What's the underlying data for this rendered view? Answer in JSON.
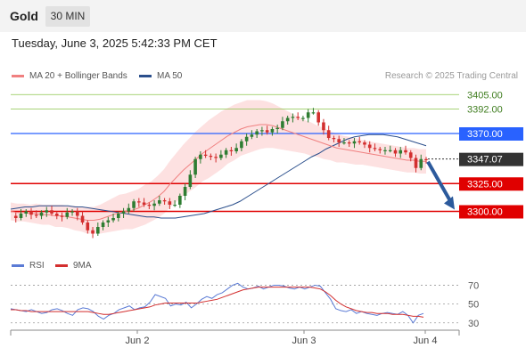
{
  "header": {
    "symbol": "Gold",
    "timeframe": "30 MIN"
  },
  "datetime": "Tuesday, June 3, 2025 5:42:33 PM CET",
  "legend": {
    "ma20": "MA 20 + Bollinger Bands",
    "ma50": "MA 50",
    "rsi": "RSI",
    "ma9": "9MA"
  },
  "credit": "Research © 2025 Trading Central",
  "colors": {
    "ma20": "#f08080",
    "ma50": "#2b4f8c",
    "band": "#fde1e1",
    "up": "#2e7d32",
    "down": "#d32f2f",
    "resistance": "#8bc34a",
    "pivot": "#2962ff",
    "support": "#e00000",
    "arrow": "#2c5a9c",
    "rsi": "#5b7bd5",
    "rsi_ma": "#d32f2f"
  },
  "chart_data": [
    {
      "type": "line",
      "ylim": [
        3262,
        3418
      ],
      "x_ticks": [
        "Jun 2",
        "Jun 3",
        "Jun 4"
      ],
      "levels": [
        {
          "label": "3405.00",
          "value": 3405,
          "kind": "resistance"
        },
        {
          "label": "3392.00",
          "value": 3392,
          "kind": "resistance"
        },
        {
          "label": "3370.00",
          "value": 3370,
          "kind": "pivot"
        },
        {
          "label": "3347.07",
          "value": 3347.07,
          "kind": "last"
        },
        {
          "label": "3325.00",
          "value": 3325,
          "kind": "support"
        },
        {
          "label": "3300.00",
          "value": 3300,
          "kind": "support"
        }
      ],
      "price_path": [
        3296,
        3294,
        3298,
        3300,
        3297,
        3296,
        3299,
        3301,
        3298,
        3296,
        3295,
        3299,
        3300,
        3296,
        3290,
        3283,
        3280,
        3286,
        3290,
        3292,
        3294,
        3298,
        3300,
        3303,
        3309,
        3308,
        3306,
        3305,
        3307,
        3310,
        3309,
        3306,
        3306,
        3314,
        3322,
        3333,
        3347,
        3351,
        3350,
        3349,
        3348,
        3351,
        3355,
        3354,
        3357,
        3363,
        3367,
        3369,
        3372,
        3373,
        3371,
        3374,
        3375,
        3381,
        3384,
        3385,
        3384,
        3384,
        3389,
        3389,
        3380,
        3373,
        3366,
        3365,
        3362,
        3362,
        3361,
        3363,
        3362,
        3360,
        3357,
        3356,
        3355,
        3355,
        3355,
        3352,
        3355,
        3353,
        3348,
        3339,
        3347,
        3346
      ],
      "ma50_path": [
        3302,
        3303,
        3304,
        3304,
        3305,
        3305,
        3305,
        3305,
        3305,
        3304,
        3304,
        3303,
        3302,
        3301,
        3300,
        3299,
        3298,
        3297,
        3296,
        3295,
        3295,
        3294,
        3294,
        3294,
        3295,
        3296,
        3297,
        3298,
        3300,
        3302,
        3304,
        3306,
        3309,
        3313,
        3317,
        3321,
        3325,
        3329,
        3333,
        3337,
        3341,
        3345,
        3349,
        3352,
        3356,
        3359,
        3362,
        3365,
        3367,
        3368,
        3369,
        3369,
        3369,
        3368,
        3367,
        3365,
        3363,
        3361,
        3359
      ],
      "ma20_path": [
        3300,
        3299,
        3299,
        3298,
        3298,
        3297,
        3297,
        3296,
        3296,
        3295,
        3294,
        3293,
        3292,
        3292,
        3293,
        3295,
        3297,
        3299,
        3300,
        3301,
        3303,
        3306,
        3309,
        3313,
        3318,
        3325,
        3331,
        3337,
        3342,
        3347,
        3352,
        3356,
        3360,
        3364,
        3368,
        3371,
        3374,
        3376,
        3377,
        3378,
        3378,
        3377,
        3375,
        3373,
        3371,
        3369,
        3367,
        3365,
        3363,
        3361,
        3359,
        3357,
        3356,
        3355,
        3354,
        3353,
        3352,
        3351,
        3350,
        3349,
        3348,
        3347,
        3346,
        3346,
        3345,
        3345
      ],
      "arrow": {
        "from": 3347,
        "to": 3300
      }
    },
    {
      "type": "line",
      "ylim": [
        26,
        78
      ],
      "y_ticks": [
        "70",
        "50",
        "30"
      ],
      "x_ticks": [
        "Jun 2",
        "Jun 3",
        "Jun 4"
      ],
      "series": [
        {
          "name": "RSI",
          "values": [
            45,
            44,
            43,
            42,
            44,
            42,
            40,
            41,
            44,
            45,
            43,
            40,
            38,
            44,
            46,
            45,
            42,
            37,
            34,
            38,
            40,
            44,
            46,
            48,
            44,
            46,
            47,
            52,
            60,
            58,
            56,
            48,
            50,
            49,
            52,
            46,
            50,
            55,
            58,
            56,
            60,
            62,
            66,
            70,
            72,
            68,
            66,
            67,
            69,
            66,
            68,
            70,
            70,
            69,
            67,
            66,
            68,
            66,
            68,
            70,
            69,
            62,
            55,
            45,
            43,
            42,
            44,
            40,
            42,
            40,
            39,
            38,
            40,
            41,
            40,
            39,
            42,
            38,
            30,
            38,
            40
          ]
        },
        {
          "name": "9MA",
          "values": [
            44,
            44,
            43,
            43,
            42,
            42,
            42,
            42,
            42,
            42,
            42,
            42,
            42,
            42,
            42,
            42,
            41,
            40,
            39,
            39,
            40,
            41,
            42,
            43,
            44,
            45,
            46,
            47,
            49,
            50,
            51,
            51,
            51,
            51,
            51,
            51,
            51,
            52,
            53,
            54,
            55,
            57,
            59,
            61,
            63,
            65,
            66,
            67,
            68,
            68,
            68,
            68,
            68,
            68,
            68,
            68,
            68,
            68,
            68,
            67,
            66,
            63,
            59,
            54,
            50,
            47,
            45,
            43,
            42,
            41,
            41,
            40,
            40,
            40,
            39,
            39,
            39,
            38,
            37,
            37,
            36
          ]
        }
      ]
    }
  ]
}
